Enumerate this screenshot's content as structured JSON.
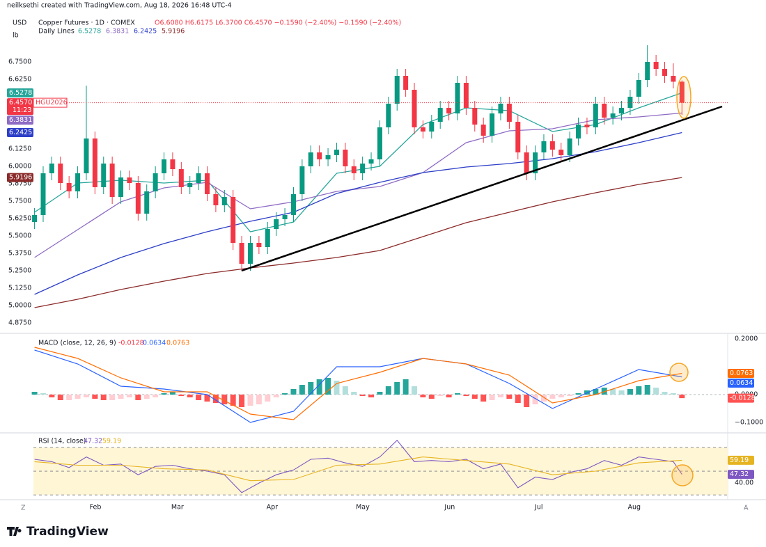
{
  "header": {
    "credit": "neilksethi created with TradingView.com, Aug 18, 2026 16:48 UTC-4",
    "currency": "USD",
    "unit": "lb"
  },
  "chart_data": [
    {
      "type": "candlestick",
      "title": "Copper Futures · 1D · COMEX",
      "ohlc_readout": "O6.6080 H6.6175 L6.3700 C6.4570 −0.1590 (−2.40%) −0.1590 (−2.40%)",
      "lines_label": "Daily Lines",
      "up_color": "#089981",
      "down_color": "#f23645",
      "open": [
        5.6,
        5.65,
        5.95,
        6.02,
        5.88,
        5.82,
        5.95,
        6.2,
        5.85,
        6.02,
        5.78,
        5.92,
        5.88,
        5.66,
        5.82,
        5.95,
        6.05,
        5.98,
        5.85,
        5.88,
        5.95,
        5.8,
        5.72,
        5.78,
        5.45,
        5.3,
        5.45,
        5.42,
        5.55,
        5.62,
        5.65,
        5.8,
        6.0,
        6.1,
        6.05,
        6.08,
        6.12,
        6.0,
        5.95,
        6.02,
        6.05,
        6.28,
        6.45,
        6.65,
        6.55,
        6.28,
        6.25,
        6.32,
        6.42,
        6.38,
        6.6,
        6.42,
        6.3,
        6.22,
        6.38,
        6.45,
        6.32,
        6.1,
        5.95,
        6.1,
        6.18,
        6.12,
        6.08,
        6.2,
        6.3,
        6.28,
        6.45,
        6.35,
        6.38,
        6.42,
        6.5,
        6.62,
        6.75,
        6.7,
        6.65,
        6.608
      ],
      "high": [
        5.7,
        6.0,
        6.07,
        6.07,
        5.93,
        6.0,
        6.58,
        6.25,
        6.07,
        6.07,
        5.97,
        5.97,
        5.93,
        5.87,
        6.0,
        6.1,
        6.1,
        6.03,
        5.93,
        6.0,
        6.0,
        5.85,
        5.83,
        5.83,
        5.5,
        5.5,
        5.5,
        5.6,
        5.67,
        5.7,
        5.85,
        6.05,
        6.15,
        6.15,
        6.13,
        6.17,
        6.17,
        6.05,
        6.07,
        6.1,
        6.33,
        6.5,
        6.7,
        6.7,
        6.6,
        6.33,
        6.37,
        6.47,
        6.47,
        6.65,
        6.65,
        6.47,
        6.35,
        6.43,
        6.5,
        6.5,
        6.37,
        6.15,
        6.15,
        6.23,
        6.23,
        6.17,
        6.25,
        6.35,
        6.35,
        6.5,
        6.5,
        6.43,
        6.47,
        6.55,
        6.67,
        6.87,
        6.8,
        6.75,
        6.74,
        6.6175
      ],
      "low": [
        5.55,
        5.6,
        5.9,
        5.83,
        5.77,
        5.77,
        5.9,
        5.8,
        5.8,
        5.73,
        5.73,
        5.83,
        5.61,
        5.61,
        5.77,
        5.9,
        5.93,
        5.8,
        5.8,
        5.83,
        5.75,
        5.67,
        5.67,
        5.4,
        5.25,
        5.25,
        5.37,
        5.37,
        5.5,
        5.57,
        5.6,
        5.75,
        5.95,
        6.0,
        6.0,
        6.03,
        5.95,
        5.9,
        5.9,
        5.97,
        6.0,
        6.23,
        6.4,
        6.5,
        6.23,
        6.2,
        6.2,
        6.27,
        6.33,
        6.33,
        6.37,
        6.25,
        6.17,
        6.17,
        6.33,
        6.27,
        6.05,
        5.9,
        5.9,
        6.05,
        6.07,
        6.03,
        6.03,
        6.15,
        6.23,
        6.23,
        6.3,
        6.3,
        6.33,
        6.37,
        6.45,
        6.57,
        6.65,
        6.6,
        6.56,
        6.37
      ],
      "close": [
        5.65,
        5.95,
        6.02,
        5.88,
        5.82,
        5.95,
        6.2,
        5.85,
        6.02,
        5.78,
        5.92,
        5.88,
        5.66,
        5.82,
        5.95,
        6.05,
        5.98,
        5.85,
        5.88,
        5.95,
        5.8,
        5.72,
        5.78,
        5.45,
        5.3,
        5.45,
        5.42,
        5.55,
        5.62,
        5.65,
        5.8,
        6.0,
        6.1,
        6.05,
        6.08,
        6.12,
        6.0,
        5.95,
        6.02,
        6.05,
        6.28,
        6.45,
        6.65,
        6.55,
        6.28,
        6.25,
        6.32,
        6.42,
        6.38,
        6.6,
        6.42,
        6.3,
        6.22,
        6.38,
        6.45,
        6.32,
        6.1,
        5.95,
        6.1,
        6.18,
        6.12,
        6.08,
        6.2,
        6.3,
        6.28,
        6.45,
        6.35,
        6.38,
        6.42,
        6.5,
        6.62,
        6.75,
        6.7,
        6.65,
        6.608,
        6.457
      ],
      "last_price": {
        "value": 6.457,
        "label": "6.4570"
      },
      "symbol": "HGU2026",
      "countdown": "11:23",
      "series": [
        {
          "color": "#26a69a",
          "x": [
            0,
            5,
            10,
            15,
            20,
            25,
            30,
            35,
            40,
            45,
            50,
            55,
            60,
            65,
            70,
            75
          ],
          "values": [
            5.67,
            5.88,
            5.9,
            5.88,
            5.9,
            5.53,
            5.6,
            5.95,
            6.0,
            6.3,
            6.42,
            6.4,
            6.25,
            6.3,
            6.42,
            6.5278
          ],
          "last": 6.5278
        },
        {
          "color": "#8e6bc4",
          "x": [
            0,
            5,
            10,
            15,
            20,
            25,
            30,
            35,
            40,
            45,
            50,
            55,
            60,
            65,
            70,
            75
          ],
          "values": [
            5.345,
            5.545,
            5.745,
            5.845,
            5.885,
            5.695,
            5.745,
            5.82,
            5.855,
            5.955,
            6.17,
            6.255,
            6.27,
            6.335,
            6.355,
            6.3831
          ],
          "last": 6.3831
        },
        {
          "color": "#2d3fc7",
          "x": [
            0,
            5,
            10,
            15,
            20,
            25,
            30,
            35,
            40,
            45,
            50,
            55,
            60,
            65,
            70,
            75
          ],
          "values": [
            5.08,
            5.22,
            5.345,
            5.445,
            5.53,
            5.605,
            5.67,
            5.805,
            5.885,
            5.955,
            5.995,
            6.02,
            6.055,
            6.105,
            6.17,
            6.2425
          ],
          "last": 6.2425
        },
        {
          "color": "#8b2a2a",
          "x": [
            0,
            5,
            10,
            15,
            20,
            25,
            30,
            35,
            40,
            45,
            50,
            55,
            60,
            65,
            70,
            75
          ],
          "values": [
            4.985,
            5.045,
            5.115,
            5.175,
            5.23,
            5.27,
            5.305,
            5.345,
            5.395,
            5.495,
            5.595,
            5.67,
            5.745,
            5.81,
            5.87,
            5.9196
          ],
          "last": 5.9196
        }
      ],
      "xlim": [
        -4,
        80.3
      ],
      "xticks": [
        {
          "value": 7.05,
          "label": "Feb"
        },
        {
          "value": 16.56,
          "label": "Mar"
        },
        {
          "value": 27.53,
          "label": "Apr"
        },
        {
          "value": 38.02,
          "label": "May"
        },
        {
          "value": 48.1,
          "label": "Jun"
        },
        {
          "value": 58.42,
          "label": "Jul"
        },
        {
          "value": 69.47,
          "label": "Aug"
        }
      ],
      "ylim": [
        4.805,
        7.095
      ],
      "yticks": [
        {
          "value": 6.75,
          "label": "6.7500"
        },
        {
          "value": 6.625,
          "label": "6.6250"
        },
        {
          "value": 6.125,
          "label": "6.1250"
        },
        {
          "value": 6,
          "label": "6.0000"
        },
        {
          "value": 5.875,
          "label": "5.8750"
        },
        {
          "value": 5.75,
          "label": "5.7500"
        },
        {
          "value": 5.625,
          "label": "5.6250"
        },
        {
          "value": 5.5,
          "label": "5.5000"
        },
        {
          "value": 5.375,
          "label": "5.3750"
        },
        {
          "value": 5.25,
          "label": "5.2500"
        },
        {
          "value": 5.125,
          "label": "5.1250"
        },
        {
          "value": 5,
          "label": "5.0000"
        },
        {
          "value": 4.875,
          "label": "4.8750"
        }
      ],
      "grid": false
    },
    {
      "type": "macd",
      "title": "MACD (close, 12, 26, 9)",
      "hist_colors": [
        "#26a69a",
        "#b2dfdb",
        "#ffcdd2",
        "#ff5252"
      ],
      "histogram": {
        "values": [
          0.01,
          0.005,
          -0.01,
          -0.02,
          -0.02,
          -0.015,
          -0.01,
          -0.015,
          -0.02,
          -0.02,
          -0.015,
          -0.01,
          -0.02,
          -0.015,
          -0.01,
          0.005,
          0.01,
          -0.005,
          -0.01,
          -0.02,
          -0.025,
          -0.03,
          -0.035,
          -0.04,
          -0.045,
          -0.04,
          -0.035,
          -0.025,
          -0.01,
          0.005,
          0.02,
          0.035,
          0.045,
          0.055,
          0.06,
          0.05,
          0.03,
          0.01,
          -0.005,
          -0.01,
          0.01,
          0.03,
          0.045,
          0.055,
          0.03,
          -0.01,
          -0.015,
          -0.005,
          -0.01,
          0.005,
          -0.005,
          -0.015,
          -0.025,
          -0.02,
          -0.01,
          -0.015,
          -0.03,
          -0.045,
          -0.035,
          -0.025,
          -0.015,
          -0.01,
          -0.005,
          0.005,
          0.015,
          0.02,
          0.025,
          0.02,
          0.015,
          0.02,
          0.03,
          0.035,
          0.025,
          0.01,
          0.005,
          -0.0128
        ]
      },
      "series": [
        {
          "color": "#2962ff",
          "x": [
            0,
            5,
            10,
            15,
            20,
            25,
            30,
            35,
            40,
            45,
            50,
            55,
            60,
            65,
            70,
            75
          ],
          "values": [
            0.16,
            0.11,
            0.03,
            0.02,
            0.0,
            -0.1,
            -0.06,
            0.1,
            0.1,
            0.13,
            0.11,
            0.04,
            -0.05,
            0.02,
            0.09,
            0.0634
          ]
        },
        {
          "color": "#ff6d00",
          "x": [
            0,
            5,
            10,
            15,
            20,
            25,
            30,
            35,
            40,
            45,
            50,
            55,
            60,
            65,
            70,
            75
          ],
          "values": [
            0.17,
            0.13,
            0.06,
            0.01,
            0.01,
            -0.07,
            -0.09,
            0.04,
            0.08,
            0.13,
            0.11,
            0.07,
            -0.03,
            0.0,
            0.05,
            0.0763
          ]
        }
      ],
      "ylim": [
        -0.1325,
        0.2175
      ],
      "yticks": [
        {
          "value": 0.2,
          "label": "0.2000"
        },
        {
          "value": 0,
          "label": "0.0000"
        },
        {
          "value": -0.1,
          "label": "−0.1000"
        }
      ]
    },
    {
      "type": "rsi",
      "title": "RSI (14, close)",
      "band": [
        30,
        70
      ],
      "band_color": "#fff6d6",
      "levels": [
        70,
        50,
        30
      ],
      "series": [
        {
          "color": "#7e57c2",
          "x": [
            0,
            2,
            4,
            6,
            8,
            10,
            12,
            14,
            16,
            18,
            20,
            22,
            24,
            26,
            28,
            30,
            32,
            34,
            36,
            38,
            40,
            42,
            44,
            46,
            48,
            50,
            52,
            54,
            56,
            58,
            60,
            62,
            64,
            66,
            68,
            70,
            72,
            74,
            75
          ],
          "values": [
            60,
            58,
            53,
            62,
            55,
            56,
            47,
            54,
            55,
            52,
            50,
            47,
            32,
            40,
            47,
            51,
            60,
            61,
            57,
            54,
            62,
            76,
            58,
            59,
            58,
            60,
            52,
            56,
            36,
            45,
            43,
            49,
            52,
            59,
            55,
            62,
            60,
            58,
            47.32
          ]
        },
        {
          "color": "#e6b422",
          "x": [
            0,
            5,
            10,
            15,
            20,
            25,
            30,
            35,
            40,
            45,
            50,
            55,
            60,
            65,
            70,
            75
          ],
          "values": [
            58,
            55,
            55,
            52,
            51,
            42,
            43,
            55,
            56,
            62,
            59,
            56,
            47,
            50,
            57,
            59.19
          ]
        }
      ],
      "ylim": [
        26,
        80.5
      ],
      "yticks": [
        {
          "value": 40,
          "label": "40.00"
        }
      ]
    }
  ],
  "footer": {
    "brand": "TradingView",
    "left_corner": "Z",
    "right_corner": "A"
  }
}
